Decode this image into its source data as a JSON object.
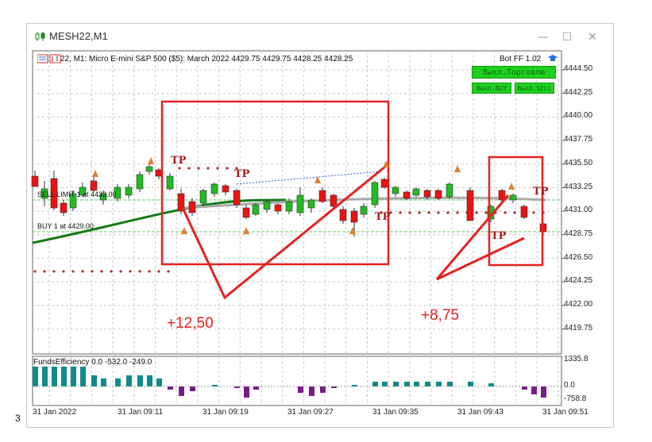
{
  "window": {
    "title": "MESH22,M1",
    "minimize": "—",
    "maximize": "☐",
    "close": "✕"
  },
  "chart": {
    "info_line": "MESH22, M1:  Micro E-mini S&P 500 ($5): March 2022  4429.75 4429.75 4428.25 4428.25",
    "bot_label": "Bot FF 1.02",
    "buttons": {
      "main": "Выкл.Торговлю",
      "buy": "Выкл.BUY",
      "sell": "Выкл.SELL"
    },
    "orders": {
      "sell_limit": "SELL LIMIT 1 at 4432.00",
      "buy": "BUY 1 at 4429.00"
    },
    "price_ticks": [
      "4444.50",
      "4442.25",
      "4440.00",
      "4437.75",
      "4435.50",
      "4433.25",
      "4431.00",
      "4428.75",
      "4426.50",
      "4424.25",
      "4422.00",
      "4419.75"
    ],
    "time_ticks": [
      "31 Jan 2022",
      "31 Jan 09:11",
      "31 Jan 09:19",
      "31 Jan 09:27",
      "31 Jan 09:35",
      "31 Jan 09:43",
      "31 Jan 09:51"
    ],
    "tp_labels": [
      "TP",
      "TP",
      "TP",
      "TP",
      "TP"
    ],
    "annotations": {
      "profit_left": "+12,50",
      "profit_right": "+8,75"
    },
    "indicator": {
      "label": "FundsEfficiency 0.0 -532.0 -249.0",
      "ticks": [
        "1335.8",
        "0.0",
        "-758.8"
      ]
    },
    "accent": "#e82020",
    "bull_color": "#22bb22",
    "bear_color": "#ee1111"
  },
  "footer": {
    "corner_text": "3"
  }
}
